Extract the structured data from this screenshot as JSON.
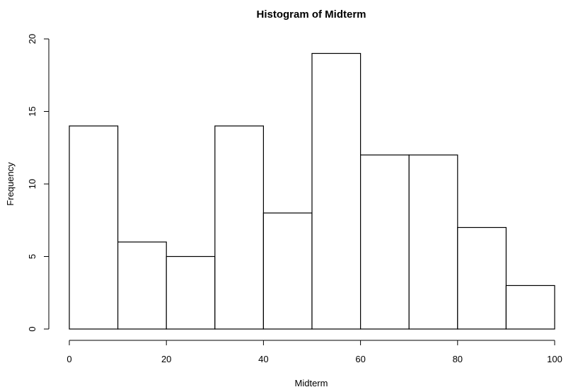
{
  "chart_data": {
    "type": "bar",
    "title": "Histogram of Midterm",
    "xlabel": "Midterm",
    "ylabel": "Frequency",
    "bins": [
      {
        "from": 0,
        "to": 10,
        "count": 14
      },
      {
        "from": 10,
        "to": 20,
        "count": 6
      },
      {
        "from": 20,
        "to": 30,
        "count": 5
      },
      {
        "from": 30,
        "to": 40,
        "count": 14
      },
      {
        "from": 40,
        "to": 50,
        "count": 8
      },
      {
        "from": 50,
        "to": 60,
        "count": 19
      },
      {
        "from": 60,
        "to": 70,
        "count": 12
      },
      {
        "from": 70,
        "to": 80,
        "count": 12
      },
      {
        "from": 80,
        "to": 90,
        "count": 7
      },
      {
        "from": 90,
        "to": 100,
        "count": 3
      }
    ],
    "xlim": [
      0,
      100
    ],
    "ylim": [
      0,
      20
    ],
    "xticks": [
      "0",
      "20",
      "40",
      "60",
      "80",
      "100"
    ],
    "yticks": [
      "0",
      "5",
      "10",
      "15",
      "20"
    ],
    "grid": false,
    "colors": {
      "bar_fill": "#ffffff",
      "bar_stroke": "#000000",
      "axis": "#000000"
    }
  }
}
